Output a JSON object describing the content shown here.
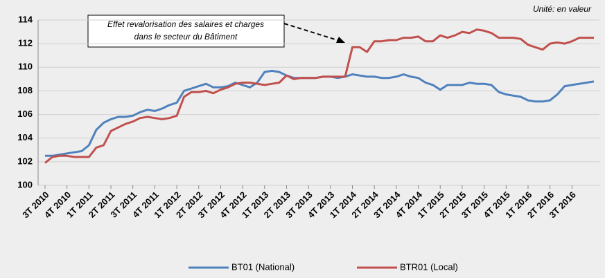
{
  "chart_data": {
    "type": "line",
    "unit_note": "Unité: en valeur",
    "annotation": [
      "Effet revalorisation des salaires et charges",
      "dans le secteur du Bâtiment"
    ],
    "categories": [
      "3T 2010",
      null,
      null,
      "4T 2010",
      null,
      null,
      "1T 2011",
      null,
      null,
      "2T 2011",
      null,
      null,
      "3T 2011",
      null,
      null,
      "4T 2011",
      null,
      null,
      "1T 2012",
      null,
      null,
      "2T 2012",
      null,
      null,
      "3T 2012",
      null,
      null,
      "4T 2012",
      null,
      null,
      "1T 2013",
      null,
      null,
      "2T 2013",
      null,
      null,
      "3T 2013",
      null,
      null,
      "4T 2013",
      null,
      null,
      "1T 2014",
      null,
      null,
      "2T 2014",
      null,
      null,
      "3T 2014",
      null,
      null,
      "4T 2014",
      null,
      null,
      "1T 2015",
      null,
      null,
      "2T 2015",
      null,
      null,
      "3T 2015",
      null,
      null,
      "4T 2015",
      null,
      null,
      "1T 2016",
      null,
      null,
      "2T 2016",
      null,
      null,
      "3T 2016",
      null,
      null,
      null
    ],
    "series": [
      {
        "name": "BT01 (National)",
        "color": "#4f81bd",
        "values": [
          102.5,
          102.5,
          102.6,
          102.7,
          102.8,
          102.9,
          103.4,
          104.7,
          105.3,
          105.6,
          105.8,
          105.8,
          105.9,
          106.2,
          106.4,
          106.3,
          106.5,
          106.8,
          107.0,
          108.0,
          108.2,
          108.4,
          108.6,
          108.3,
          108.3,
          108.4,
          108.7,
          108.5,
          108.3,
          108.7,
          109.6,
          109.7,
          109.6,
          109.3,
          109.1,
          109.1,
          109.1,
          109.1,
          109.2,
          109.2,
          109.1,
          109.2,
          109.4,
          109.3,
          109.2,
          109.2,
          109.1,
          109.1,
          109.2,
          109.4,
          109.2,
          109.1,
          108.7,
          108.5,
          108.1,
          108.5,
          108.5,
          108.5,
          108.7,
          108.6,
          108.6,
          108.5,
          107.9,
          107.7,
          107.6,
          107.5,
          107.2,
          107.1,
          107.1,
          107.2,
          107.7,
          108.4,
          108.5,
          108.6,
          108.7,
          108.8
        ]
      },
      {
        "name": "BTR01 (Local)",
        "color": "#c0504d",
        "values": [
          101.9,
          102.4,
          102.5,
          102.5,
          102.4,
          102.4,
          102.4,
          103.2,
          103.4,
          104.6,
          104.9,
          105.2,
          105.4,
          105.7,
          105.8,
          105.7,
          105.6,
          105.7,
          105.9,
          107.5,
          107.9,
          107.9,
          108.0,
          107.8,
          108.1,
          108.3,
          108.6,
          108.7,
          108.7,
          108.6,
          108.5,
          108.6,
          108.7,
          109.3,
          109.0,
          109.1,
          109.1,
          109.1,
          109.2,
          109.2,
          109.2,
          109.2,
          111.7,
          111.7,
          111.3,
          112.2,
          112.2,
          112.3,
          112.3,
          112.5,
          112.5,
          112.6,
          112.2,
          112.2,
          112.7,
          112.5,
          112.7,
          113.0,
          112.9,
          113.2,
          113.1,
          112.9,
          112.5,
          112.5,
          112.5,
          112.4,
          111.9,
          111.7,
          111.5,
          112.0,
          112.1,
          112.0,
          112.2,
          112.5,
          112.5,
          112.5
        ]
      }
    ],
    "ylim": [
      100,
      114
    ],
    "yticks": [
      100,
      102,
      104,
      106,
      108,
      110,
      112,
      114
    ],
    "grid": true
  }
}
